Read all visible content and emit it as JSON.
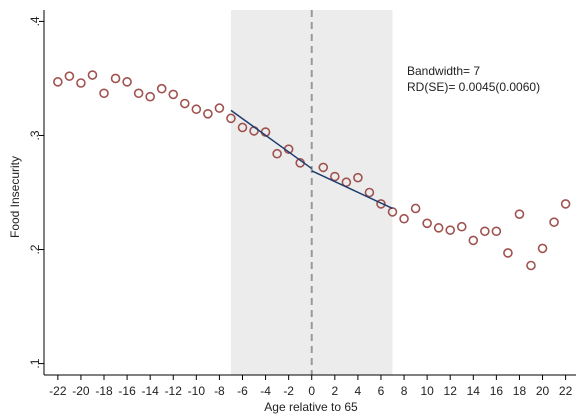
{
  "chart_data": {
    "type": "scatter",
    "xlabel": "Age relative to 65",
    "ylabel": "Food Insecurity",
    "annotations": [
      "Bandwidth= 7",
      "RD(SE)= 0.0045(0.0060)"
    ],
    "xlim": [
      -23.2,
      22.9
    ],
    "ylim": [
      0.09,
      0.41
    ],
    "xticks": [
      -22,
      -20,
      -18,
      -16,
      -14,
      -12,
      -10,
      -8,
      -6,
      -4,
      -2,
      0,
      2,
      4,
      6,
      8,
      10,
      12,
      14,
      16,
      18,
      20,
      22
    ],
    "yticks": [
      {
        "value": 0.1,
        "label": ".1"
      },
      {
        "value": 0.2,
        "label": ".2"
      },
      {
        "value": 0.3,
        "label": ".3"
      },
      {
        "value": 0.4,
        "label": ".4"
      }
    ],
    "shaded_range": [
      -7,
      7
    ],
    "cutoff": 0,
    "shade_color": "#ececec",
    "points": {
      "color": "#a0524f",
      "x": [
        -22,
        -21,
        -20,
        -19,
        -18,
        -17,
        -16,
        -15,
        -14,
        -13,
        -12,
        -11,
        -10,
        -9,
        -8,
        -7,
        -6,
        -5,
        -4,
        -3,
        -2,
        -1,
        1,
        2,
        3,
        4,
        5,
        6,
        7,
        8,
        9,
        10,
        11,
        12,
        13,
        14,
        15,
        16,
        17,
        18,
        19,
        20,
        21,
        22
      ],
      "values": [
        0.347,
        0.352,
        0.346,
        0.353,
        0.337,
        0.35,
        0.347,
        0.337,
        0.334,
        0.341,
        0.336,
        0.328,
        0.323,
        0.319,
        0.324,
        0.315,
        0.307,
        0.304,
        0.303,
        0.284,
        0.288,
        0.276,
        0.272,
        0.264,
        0.259,
        0.263,
        0.25,
        0.24,
        0.233,
        0.227,
        0.236,
        0.223,
        0.219,
        0.217,
        0.22,
        0.208,
        0.216,
        0.216,
        0.197,
        0.231,
        0.186,
        0.201,
        0.224,
        0.24
      ]
    },
    "fit_lines": [
      {
        "color": "#1f3c6e",
        "x": [
          -7,
          0
        ],
        "values": [
          0.322,
          0.271
        ]
      },
      {
        "color": "#1f3c6e",
        "x": [
          0,
          7
        ],
        "values": [
          0.269,
          0.236
        ]
      }
    ]
  }
}
